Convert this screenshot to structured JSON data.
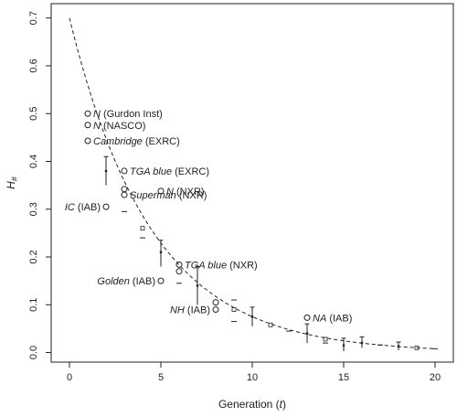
{
  "chart_data": {
    "type": "scatter",
    "xlabel": "Generation (t)",
    "ylabel": "H#",
    "xlim": [
      -1,
      21
    ],
    "ylim": [
      -0.02,
      0.73
    ],
    "xticks": [
      0,
      5,
      10,
      15,
      20
    ],
    "yticks": [
      0.0,
      0.1,
      0.2,
      0.3,
      0.4,
      0.5,
      0.6,
      0.7
    ],
    "ytick_labels": [
      "0.0",
      "0.1",
      "0.2",
      "0.3",
      "0.4",
      "0.5",
      "0.6",
      "0.7"
    ],
    "grid": false,
    "curve": {
      "style": "dashed",
      "start": 0.7,
      "decay_per_generation": 0.8
    },
    "labelled_populations": [
      {
        "x": 1,
        "y": 0.5,
        "name": "N",
        "detail": "(Gurdon Inst)"
      },
      {
        "x": 1,
        "y": 0.476,
        "name": "N",
        "detail": "(NASCO)"
      },
      {
        "x": 1,
        "y": 0.443,
        "name": "Cambridge",
        "detail": "(EXRC)"
      },
      {
        "x": 3,
        "y": 0.38,
        "name": "TGA blue",
        "detail": "(EXRC)"
      },
      {
        "x": 5,
        "y": 0.338,
        "name": "N",
        "detail": "(NXR)"
      },
      {
        "x": 3,
        "y": 0.33,
        "name": "Superman",
        "detail": "(NXR)"
      },
      {
        "x": 2,
        "y": 0.305,
        "name": "IC",
        "detail": "(IAB)",
        "label_side": "left"
      },
      {
        "x": 6,
        "y": 0.184,
        "name": "TGA blue",
        "detail": "(NXR)"
      },
      {
        "x": 5,
        "y": 0.15,
        "name": "Golden",
        "detail": "(IAB)",
        "label_side": "left"
      },
      {
        "x": 8,
        "y": 0.09,
        "name": "NH",
        "detail": "(IAB)",
        "label_side": "left"
      },
      {
        "x": 13,
        "y": 0.073,
        "name": "NA",
        "detail": "(IAB)"
      }
    ],
    "unlabelled_circles": [
      {
        "x": 3,
        "y": 0.342
      },
      {
        "x": 6,
        "y": 0.17
      },
      {
        "x": 8,
        "y": 0.105
      }
    ],
    "squares": [
      {
        "x": 4,
        "y": 0.26
      },
      {
        "x": 9,
        "y": 0.09
      },
      {
        "x": 11,
        "y": 0.058
      },
      {
        "x": 14,
        "y": 0.028
      },
      {
        "x": 19,
        "y": 0.01
      }
    ],
    "dashes": [
      {
        "x": 3,
        "y": 0.295
      },
      {
        "x": 4,
        "y": 0.24
      },
      {
        "x": 6,
        "y": 0.145
      },
      {
        "x": 9,
        "y": 0.11
      },
      {
        "x": 9,
        "y": 0.065
      },
      {
        "x": 12,
        "y": 0.045
      },
      {
        "x": 14,
        "y": 0.02
      },
      {
        "x": 17,
        "y": 0.016
      },
      {
        "x": 20,
        "y": 0.008
      }
    ],
    "error_bars": [
      {
        "x": 2,
        "y": 0.38,
        "low": 0.35,
        "high": 0.41
      },
      {
        "x": 5,
        "y": 0.21,
        "low": 0.18,
        "high": 0.235
      },
      {
        "x": 7,
        "y": 0.14,
        "low": 0.1,
        "high": 0.18
      },
      {
        "x": 10,
        "y": 0.075,
        "low": 0.055,
        "high": 0.095
      },
      {
        "x": 13,
        "y": 0.04,
        "low": 0.02,
        "high": 0.06
      },
      {
        "x": 15,
        "y": 0.015,
        "low": 0.003,
        "high": 0.03
      },
      {
        "x": 16,
        "y": 0.02,
        "low": 0.01,
        "high": 0.033
      },
      {
        "x": 18,
        "y": 0.013,
        "low": 0.005,
        "high": 0.022
      }
    ]
  }
}
